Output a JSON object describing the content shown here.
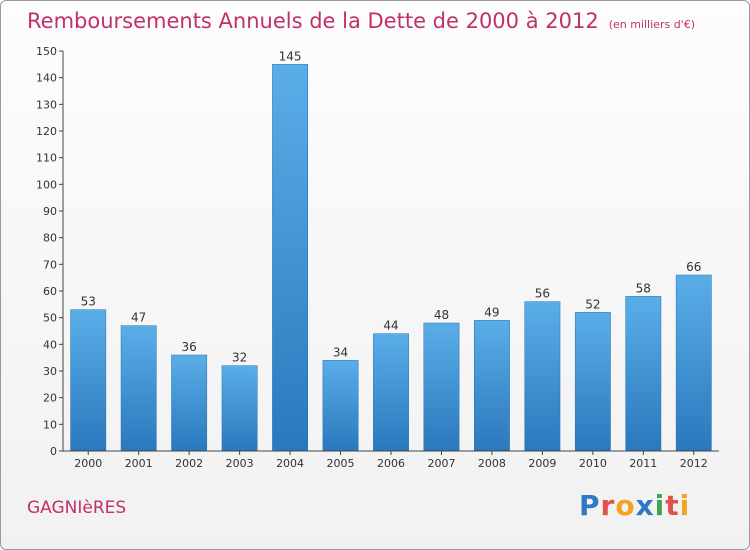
{
  "chart_data": {
    "type": "bar",
    "title": "Remboursements Annuels de la Dette de 2000 à 2012",
    "subtitle": "(en milliers d'€)",
    "categories": [
      "2000",
      "2001",
      "2002",
      "2003",
      "2004",
      "2005",
      "2006",
      "2007",
      "2008",
      "2009",
      "2010",
      "2011",
      "2012"
    ],
    "values": [
      53,
      47,
      36,
      32,
      145,
      34,
      44,
      48,
      49,
      56,
      52,
      58,
      66
    ],
    "ylim": [
      0,
      150
    ],
    "yticks": [
      0,
      10,
      20,
      30,
      40,
      50,
      60,
      70,
      80,
      90,
      100,
      110,
      120,
      130,
      140,
      150
    ],
    "xlabel": "",
    "ylabel": "",
    "grid": false,
    "bar_color": "#3f98d8"
  },
  "footer": {
    "place_name": "GAGNIèRES",
    "logo_text": "Proxiti"
  },
  "colors": {
    "accent": "#c0306a"
  }
}
